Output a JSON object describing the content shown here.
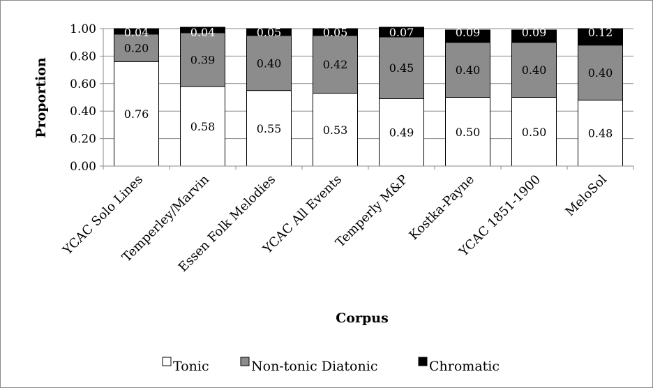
{
  "chart_data": {
    "type": "bar",
    "stacked": true,
    "ylabel": "Proportion",
    "xlabel": "Corpus",
    "ylim": [
      0,
      1
    ],
    "yticks": [
      "0.00",
      "0.20",
      "0.40",
      "0.60",
      "0.80",
      "1.00"
    ],
    "categories": [
      "YCAC Solo Lines",
      "Temperley/Marvin",
      "Essen Folk Melodies",
      "YCAC All Events",
      "Temperly M&P",
      "Kostka-Payne",
      "YCAC 1851-1900",
      "MeloSol"
    ],
    "series": [
      {
        "name": "Tonic",
        "color": "#ffffff",
        "labelColor": "#000000",
        "values": [
          0.76,
          0.58,
          0.55,
          0.53,
          0.49,
          0.5,
          0.5,
          0.48
        ],
        "labels": [
          "0.76",
          "0.58",
          "0.55",
          "0.53",
          "0.49",
          "0.50",
          "0.50",
          "0.48"
        ]
      },
      {
        "name": "Non-tonic Diatonic",
        "color": "#8c8c8c",
        "labelColor": "#000000",
        "values": [
          0.2,
          0.39,
          0.4,
          0.42,
          0.45,
          0.4,
          0.4,
          0.4
        ],
        "labels": [
          "0.20",
          "0.39",
          "0.40",
          "0.42",
          "0.45",
          "0.40",
          "0.40",
          "0.40"
        ]
      },
      {
        "name": "Chromatic",
        "color": "#000000",
        "labelColor": "#ffffff",
        "values": [
          0.04,
          0.04,
          0.05,
          0.05,
          0.07,
          0.09,
          0.09,
          0.12
        ],
        "labels": [
          "0.04",
          "0.04",
          "0.05",
          "0.05",
          "0.07",
          "0.09",
          "0.09",
          "0.12"
        ]
      }
    ],
    "legend": "bottom",
    "grid": true
  }
}
